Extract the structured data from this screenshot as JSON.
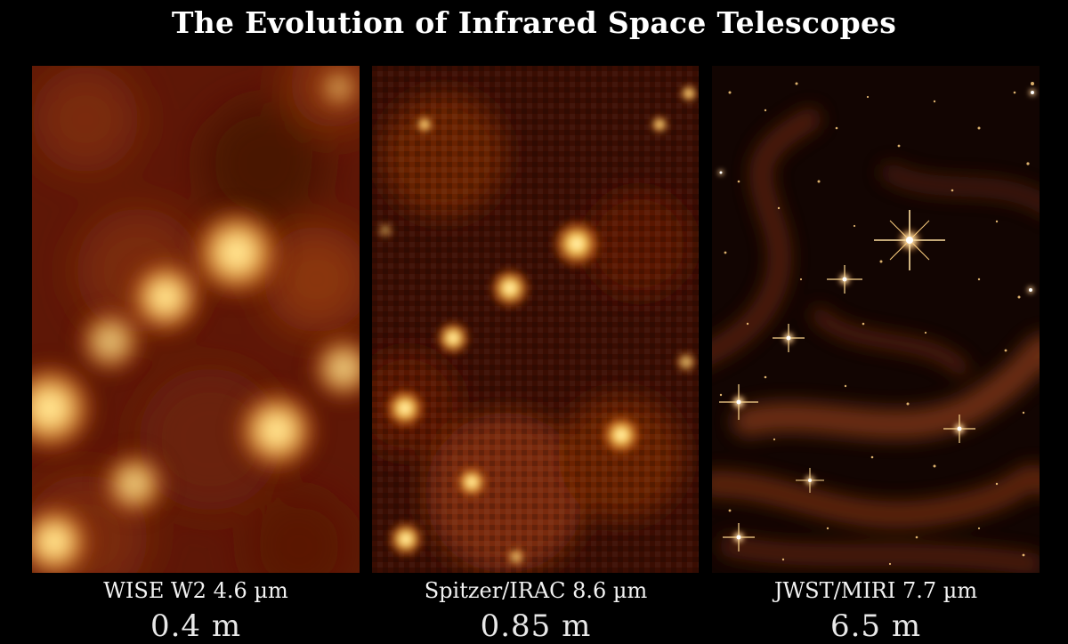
{
  "title": "The Evolution of Infrared Space Telescopes",
  "panels": [
    {
      "caption": "WISE W2 4.6 µm",
      "aperture": "0.4 m"
    },
    {
      "caption": "Spitzer/IRAC 8.6 µm",
      "aperture": "0.85 m"
    },
    {
      "caption": "JWST/MIRI 7.7 µm",
      "aperture": "6.5 m"
    }
  ],
  "colors": {
    "background": "#000000",
    "wise_base": "#5e1706",
    "spitzer_base": "#3a0d02",
    "jwst_base": "#120502",
    "star_core": "#fff6b0",
    "star_glow": "#f0a030"
  }
}
